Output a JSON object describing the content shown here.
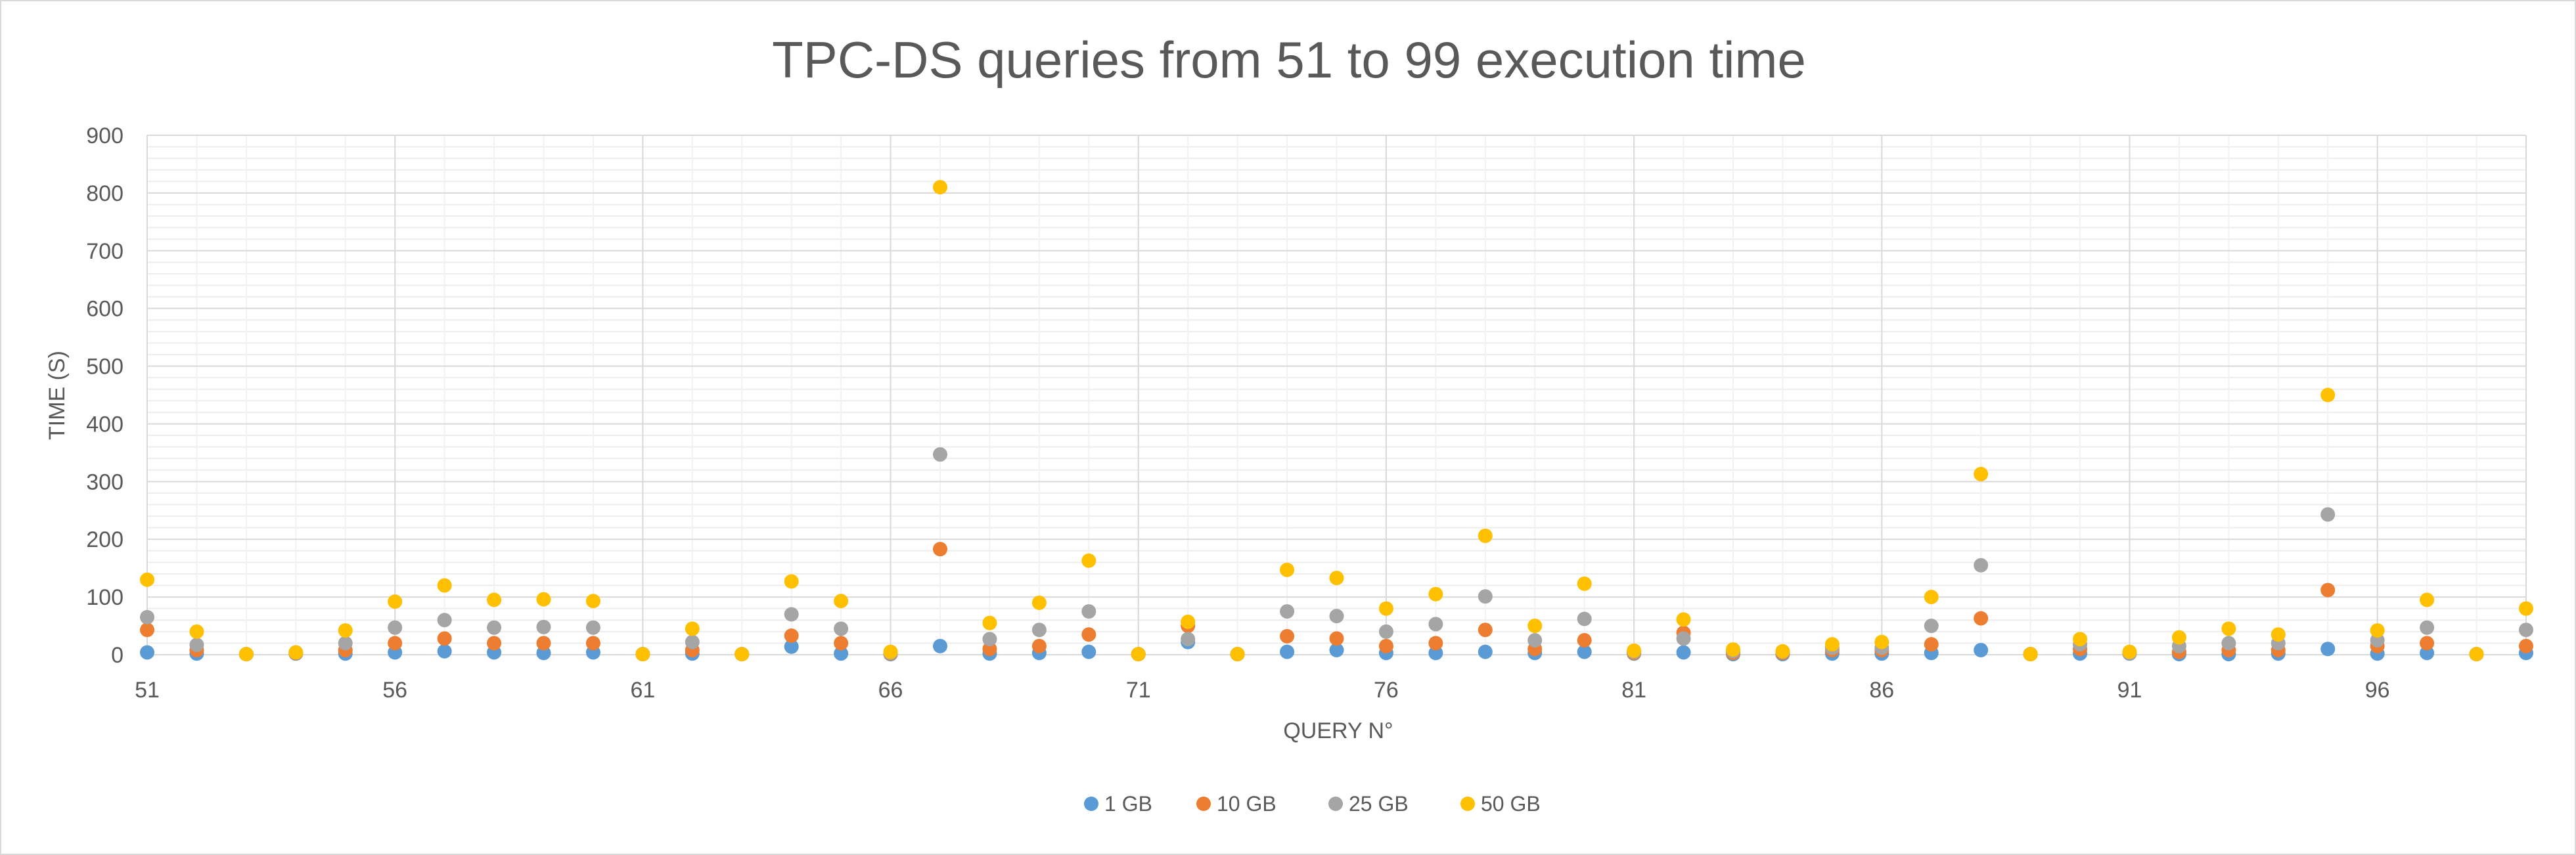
{
  "chart_data": {
    "type": "scatter",
    "title": "TPC-DS queries from 51 to 99 execution time",
    "xlabel": "QUERY N°",
    "ylabel": "TIME (S)",
    "xlim": [
      51,
      99
    ],
    "ylim": [
      0,
      900
    ],
    "x_ticks": [
      51,
      56,
      61,
      66,
      71,
      76,
      81,
      86,
      91,
      96
    ],
    "y_ticks": [
      0,
      100,
      200,
      300,
      400,
      500,
      600,
      700,
      800,
      900
    ],
    "grid": true,
    "legend_position": "bottom",
    "x": [
      51,
      52,
      53,
      54,
      55,
      56,
      57,
      58,
      59,
      60,
      61,
      62,
      63,
      64,
      65,
      66,
      67,
      68,
      69,
      70,
      71,
      72,
      73,
      74,
      75,
      76,
      77,
      78,
      79,
      80,
      81,
      82,
      83,
      84,
      85,
      86,
      87,
      88,
      89,
      90,
      91,
      92,
      93,
      94,
      95,
      96,
      97,
      98,
      99
    ],
    "series": [
      {
        "name": "1 GB",
        "color": "#5B9BD5",
        "values": [
          4,
          2,
          1,
          2,
          2,
          4,
          6,
          4,
          3,
          4,
          1,
          2,
          1,
          14,
          2,
          1,
          15,
          2,
          3,
          5,
          1,
          22,
          1,
          5,
          8,
          3,
          3,
          5,
          3,
          5,
          2,
          4,
          1,
          1,
          2,
          2,
          3,
          8,
          1,
          2,
          2,
          1,
          1,
          2,
          10,
          2,
          3,
          1,
          3
        ]
      },
      {
        "name": "10 GB",
        "color": "#ED7D31",
        "values": [
          43,
          8,
          1,
          3,
          8,
          20,
          28,
          20,
          20,
          20,
          1,
          8,
          1,
          33,
          20,
          2,
          183,
          10,
          15,
          35,
          1,
          50,
          1,
          32,
          28,
          15,
          20,
          43,
          10,
          25,
          3,
          38,
          3,
          3,
          8,
          8,
          18,
          63,
          1,
          10,
          3,
          5,
          8,
          8,
          112,
          15,
          20,
          1,
          15
        ]
      },
      {
        "name": "25 GB",
        "color": "#A5A5A5",
        "values": [
          65,
          17,
          1,
          4,
          20,
          47,
          60,
          47,
          48,
          47,
          1,
          22,
          1,
          70,
          45,
          3,
          347,
          27,
          43,
          75,
          1,
          27,
          1,
          75,
          67,
          40,
          53,
          101,
          25,
          62,
          5,
          28,
          6,
          5,
          12,
          12,
          50,
          155,
          1,
          18,
          3,
          15,
          20,
          20,
          243,
          25,
          47,
          1,
          43
        ]
      },
      {
        "name": "50 GB",
        "color": "#FFC000",
        "values": [
          130,
          40,
          1,
          4,
          42,
          92,
          120,
          95,
          96,
          93,
          1,
          45,
          1,
          127,
          93,
          5,
          810,
          55,
          90,
          163,
          1,
          57,
          1,
          147,
          133,
          80,
          105,
          206,
          50,
          123,
          7,
          61,
          9,
          6,
          18,
          22,
          100,
          313,
          1,
          27,
          5,
          30,
          45,
          35,
          450,
          42,
          95,
          1,
          80
        ]
      }
    ]
  }
}
